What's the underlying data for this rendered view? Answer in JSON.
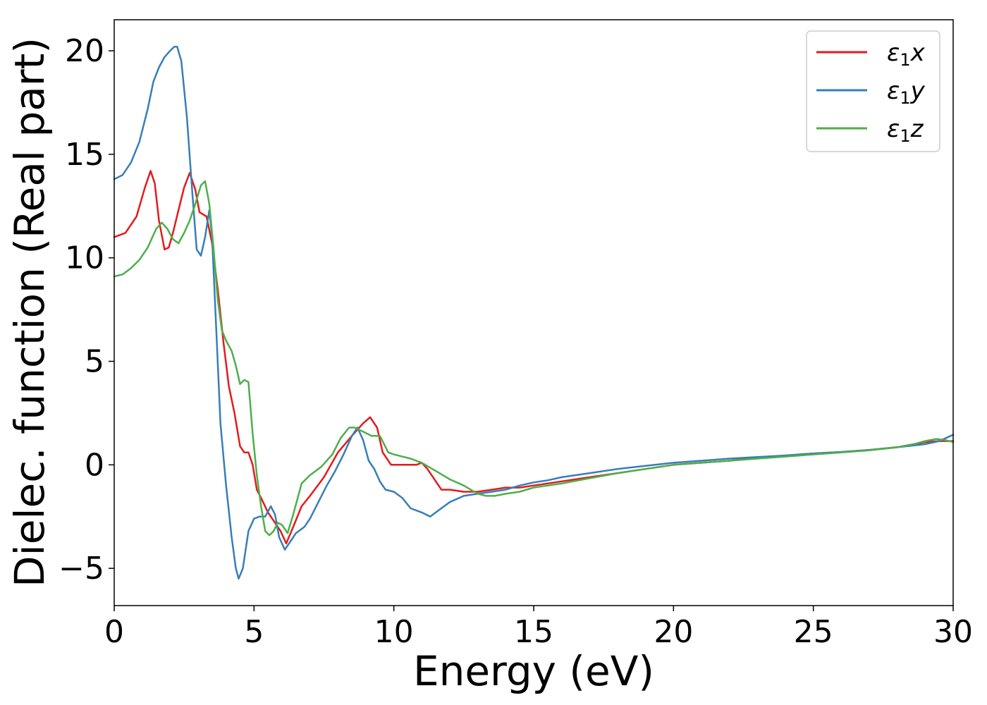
{
  "chart_data": {
    "type": "line",
    "title": "",
    "xlabel": "Energy (eV)",
    "ylabel": "Dielec. function (Real part)",
    "xlim": [
      0,
      30
    ],
    "ylim": [
      -6.8,
      21.5
    ],
    "xticks": [
      0,
      5,
      10,
      15,
      20,
      25,
      30
    ],
    "yticks": [
      -5,
      0,
      5,
      10,
      15,
      20
    ],
    "xtick_labels": [
      "0",
      "5",
      "10",
      "15",
      "20",
      "25",
      "30"
    ],
    "ytick_labels": [
      "−5",
      "0",
      "5",
      "10",
      "15",
      "20"
    ],
    "grid": false,
    "legend_position": "top-right",
    "series": [
      {
        "name": "ε₁x",
        "label_main": "ε",
        "label_sub": "1",
        "label_tail": "x",
        "color": "#e41a1c",
        "x": [
          0,
          0.4,
          0.8,
          1.1,
          1.3,
          1.45,
          1.6,
          1.8,
          1.95,
          2.1,
          2.3,
          2.5,
          2.7,
          2.9,
          3.05,
          3.3,
          3.5,
          3.7,
          3.9,
          4.1,
          4.3,
          4.5,
          4.65,
          4.8,
          4.95,
          5.1,
          5.25,
          5.5,
          5.7,
          5.95,
          6.15,
          6.4,
          6.7,
          7.0,
          7.5,
          8.0,
          8.5,
          8.9,
          9.15,
          9.4,
          9.6,
          9.9,
          10.2,
          10.5,
          10.8,
          11.0,
          11.2,
          11.4,
          11.7,
          12.0,
          12.5,
          13.0,
          13.5,
          14.0,
          14.5,
          15.0,
          16.0,
          17.0,
          18.0,
          19.0,
          20.0,
          21.0,
          22.0,
          23.0,
          24.0,
          25.0,
          26.0,
          27.0,
          28.0,
          28.6,
          29.0,
          29.5,
          30.0
        ],
        "values": [
          11.0,
          11.2,
          12.0,
          13.4,
          14.2,
          13.6,
          11.8,
          10.4,
          10.5,
          11.2,
          12.3,
          13.4,
          14.1,
          13.3,
          12.2,
          12.0,
          10.7,
          8.5,
          6.0,
          3.8,
          2.5,
          0.9,
          0.6,
          0.6,
          0.0,
          -1.2,
          -1.6,
          -2.3,
          -2.7,
          -3.2,
          -3.8,
          -3.0,
          -2.0,
          -1.5,
          -0.6,
          0.6,
          1.4,
          2.0,
          2.3,
          1.8,
          0.6,
          0.0,
          0.0,
          0.0,
          0.0,
          0.1,
          -0.2,
          -0.6,
          -1.2,
          -1.2,
          -1.3,
          -1.3,
          -1.2,
          -1.1,
          -1.1,
          -1.0,
          -0.8,
          -0.6,
          -0.4,
          -0.2,
          0.0,
          0.1,
          0.2,
          0.35,
          0.45,
          0.55,
          0.62,
          0.72,
          0.85,
          1.0,
          1.1,
          1.15,
          1.15
        ]
      },
      {
        "name": "ε₁y",
        "label_main": "ε",
        "label_sub": "1",
        "label_tail": "y",
        "color": "#377eb8",
        "x": [
          0,
          0.3,
          0.6,
          0.9,
          1.2,
          1.4,
          1.6,
          1.8,
          2.0,
          2.15,
          2.25,
          2.4,
          2.6,
          2.8,
          2.95,
          3.1,
          3.25,
          3.4,
          3.5,
          3.65,
          3.8,
          4.0,
          4.2,
          4.35,
          4.45,
          4.6,
          4.8,
          5.0,
          5.2,
          5.4,
          5.6,
          5.75,
          5.9,
          6.1,
          6.3,
          6.5,
          6.8,
          7.0,
          7.3,
          7.6,
          7.9,
          8.2,
          8.5,
          8.7,
          8.9,
          9.1,
          9.3,
          9.5,
          9.7,
          10.0,
          10.3,
          10.6,
          11.0,
          11.3,
          11.6,
          12.0,
          12.5,
          13.0,
          13.5,
          14.0,
          14.5,
          15.0,
          15.5,
          16.0,
          17.0,
          18.0,
          19.0,
          20.0,
          21.0,
          22.0,
          23.0,
          24.0,
          25.0,
          26.0,
          27.0,
          28.0,
          29.0,
          29.5,
          30.0
        ],
        "values": [
          13.8,
          14.0,
          14.6,
          15.6,
          17.2,
          18.5,
          19.2,
          19.7,
          20.0,
          20.2,
          20.2,
          19.5,
          16.8,
          13.0,
          10.4,
          10.1,
          11.0,
          12.3,
          11.0,
          6.5,
          2.0,
          -1.0,
          -3.5,
          -5.0,
          -5.5,
          -5.0,
          -3.2,
          -2.6,
          -2.5,
          -2.5,
          -2.0,
          -2.4,
          -3.5,
          -4.1,
          -3.7,
          -3.3,
          -3.0,
          -2.6,
          -1.8,
          -1.0,
          -0.3,
          0.5,
          1.4,
          1.8,
          1.2,
          0.2,
          -0.2,
          -0.8,
          -1.2,
          -1.3,
          -1.6,
          -2.1,
          -2.3,
          -2.5,
          -2.2,
          -1.8,
          -1.5,
          -1.4,
          -1.3,
          -1.2,
          -1.0,
          -0.85,
          -0.75,
          -0.6,
          -0.4,
          -0.2,
          -0.05,
          0.1,
          0.2,
          0.3,
          0.38,
          0.45,
          0.55,
          0.62,
          0.72,
          0.85,
          1.0,
          1.15,
          1.45
        ]
      },
      {
        "name": "ε₁z",
        "label_main": "ε",
        "label_sub": "1",
        "label_tail": "z",
        "color": "#4daf4a",
        "x": [
          0,
          0.3,
          0.6,
          0.9,
          1.2,
          1.5,
          1.7,
          1.9,
          2.1,
          2.3,
          2.5,
          2.7,
          2.9,
          3.1,
          3.25,
          3.4,
          3.55,
          3.7,
          3.85,
          4.0,
          4.2,
          4.35,
          4.5,
          4.65,
          4.8,
          4.95,
          5.1,
          5.25,
          5.4,
          5.55,
          5.7,
          5.85,
          6.0,
          6.2,
          6.4,
          6.7,
          7.0,
          7.4,
          7.8,
          8.1,
          8.4,
          8.6,
          8.9,
          9.2,
          9.5,
          9.8,
          10.0,
          10.3,
          10.6,
          11.0,
          11.5,
          12.0,
          12.5,
          13.0,
          13.3,
          13.6,
          14.0,
          14.5,
          15.0,
          16.0,
          17.0,
          18.0,
          19.0,
          20.0,
          21.0,
          22.0,
          23.0,
          24.0,
          25.0,
          26.0,
          27.0,
          28.0,
          28.6,
          29.0,
          29.4,
          29.7,
          30.0
        ],
        "values": [
          9.1,
          9.2,
          9.5,
          9.9,
          10.5,
          11.4,
          11.7,
          11.4,
          10.9,
          10.7,
          11.2,
          11.8,
          12.6,
          13.5,
          13.7,
          12.6,
          10.5,
          8.0,
          6.5,
          6.0,
          5.5,
          4.8,
          3.9,
          4.1,
          4.0,
          1.5,
          -0.5,
          -2.0,
          -3.2,
          -3.4,
          -3.2,
          -2.8,
          -2.9,
          -3.3,
          -2.4,
          -0.9,
          -0.5,
          -0.1,
          0.5,
          1.3,
          1.8,
          1.8,
          1.6,
          1.4,
          1.4,
          0.6,
          0.5,
          0.4,
          0.3,
          0.1,
          -0.3,
          -0.7,
          -1.0,
          -1.4,
          -1.5,
          -1.5,
          -1.4,
          -1.3,
          -1.1,
          -0.9,
          -0.65,
          -0.4,
          -0.2,
          0.0,
          0.1,
          0.2,
          0.3,
          0.4,
          0.5,
          0.6,
          0.7,
          0.85,
          1.0,
          1.15,
          1.25,
          1.2,
          1.1
        ]
      }
    ]
  }
}
